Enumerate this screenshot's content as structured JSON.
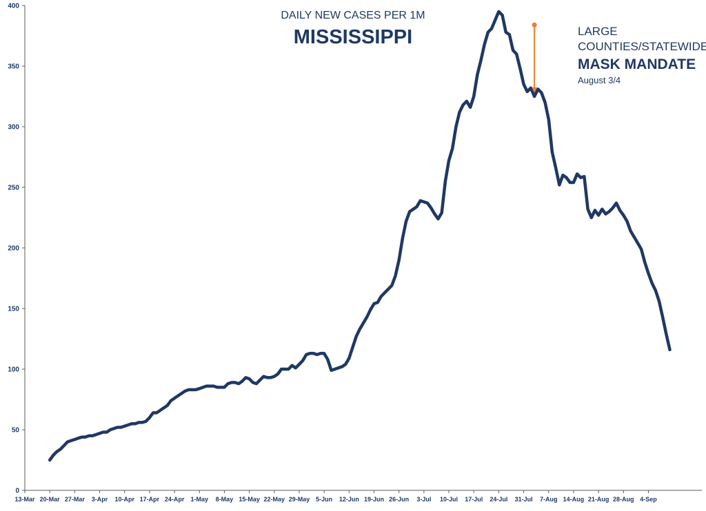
{
  "colors": {
    "line": "#1F3864",
    "annotation_arrow": "#ED7D31",
    "text": "#1F3864",
    "axis": "#595959"
  },
  "chart_data": {
    "type": "line",
    "title": "MISSISSIPPI",
    "subtitle": "DAILY NEW CASES PER 1M",
    "xlabel": "",
    "ylabel": "",
    "ylim": [
      0,
      400
    ],
    "yticks": [
      0,
      50,
      100,
      150,
      200,
      250,
      300,
      350,
      400
    ],
    "grid": false,
    "legend": "none",
    "x_tick_labels": [
      "13-Mar",
      "20-Mar",
      "27-Mar",
      "3-Apr",
      "10-Apr",
      "17-Apr",
      "24-Apr",
      "1-May",
      "8-May",
      "15-May",
      "22-May",
      "29-May",
      "5-Jun",
      "12-Jun",
      "19-Jun",
      "26-Jun",
      "3-Jul",
      "10-Jul",
      "17-Jul",
      "24-Jul",
      "31-Jul",
      "7-Aug",
      "14-Aug",
      "21-Aug",
      "28-Aug",
      "4-Sep"
    ],
    "x_start_label": "13-Mar",
    "series": [
      {
        "values": [
          25,
          29,
          32,
          34,
          37,
          40,
          41,
          42,
          43,
          44,
          44,
          45,
          45,
          46,
          47,
          48,
          48,
          50,
          51,
          52,
          52,
          53,
          54,
          55,
          55,
          56,
          56,
          57,
          60,
          64,
          64,
          66,
          68,
          70,
          74,
          76,
          78,
          80,
          82,
          83,
          83,
          83,
          84,
          85,
          86,
          86,
          86,
          85,
          85,
          85,
          88,
          89,
          89,
          88,
          90,
          93,
          92,
          89,
          88,
          91,
          94,
          93,
          93,
          94,
          96,
          100,
          100,
          100,
          103,
          101,
          104,
          107,
          112,
          113,
          113,
          112,
          113,
          113,
          108,
          99,
          100,
          101,
          102,
          104,
          109,
          118,
          127,
          133,
          138,
          143,
          149,
          154,
          155,
          160,
          163,
          166,
          169,
          177,
          190,
          208,
          222,
          230,
          232,
          234,
          239,
          238,
          237,
          233,
          228,
          224,
          229,
          255,
          272,
          282,
          300,
          312,
          318,
          321,
          316,
          325,
          343,
          355,
          368,
          378,
          381,
          388,
          395,
          392,
          378,
          376,
          363,
          360,
          348,
          335,
          329,
          332,
          325,
          331,
          328,
          320,
          306,
          279,
          266,
          252,
          260,
          258,
          254,
          254,
          261,
          258,
          259,
          232,
          225,
          231,
          227,
          232,
          228,
          230,
          233,
          237,
          231,
          227,
          222,
          214,
          209,
          204,
          199,
          188,
          179,
          171,
          165,
          156,
          143,
          129,
          116
        ]
      }
    ],
    "annotations": [
      {
        "date": "3-Aug",
        "line1": "LARGE",
        "line2": "COUNTIES/STATEWIDE",
        "line3": "MASK MANDATE",
        "line4": "August 3/4",
        "arrow_from": 384,
        "arrow_to": 328
      }
    ]
  }
}
